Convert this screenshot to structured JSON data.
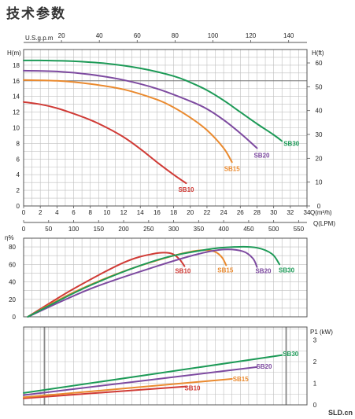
{
  "title": "技术参数",
  "watermark": "SLD.cn",
  "colors": {
    "SB10": "#d03b36",
    "SB15": "#ea8a2f",
    "SB20": "#7d4aa0",
    "SB30": "#1d9a57"
  },
  "chart_data": [
    {
      "type": "line",
      "name": "head",
      "x_units": [
        "Q(m³/h)",
        "Q(LPM)",
        "U.S.g.p.m"
      ],
      "y_units_left": "H(m)",
      "y_units_right": "H(ft)",
      "xlim": [
        0,
        34
      ],
      "ylim": [
        0,
        20
      ],
      "x_ticks": [
        0,
        2,
        4,
        6,
        8,
        10,
        12,
        14,
        16,
        18,
        20,
        22,
        24,
        26,
        28,
        30,
        32,
        34
      ],
      "y_ticks": [
        0,
        2,
        4,
        6,
        8,
        10,
        12,
        14,
        16,
        18
      ],
      "lpm_ticks": [
        0,
        50,
        100,
        150,
        200,
        250,
        300,
        350,
        400,
        450,
        500,
        550
      ],
      "gpm_ticks": [
        20,
        40,
        60,
        80,
        100,
        120,
        140
      ],
      "ft_ticks": [
        0,
        10,
        20,
        30,
        40,
        50,
        60
      ],
      "grid": true,
      "series": [
        {
          "name": "SB10",
          "x": [
            0,
            2,
            4,
            6,
            8,
            10,
            12,
            14,
            16,
            18,
            19.5
          ],
          "y": [
            13.3,
            13.0,
            12.5,
            11.8,
            11.0,
            10.0,
            8.8,
            7.3,
            5.6,
            4.0,
            2.9
          ]
        },
        {
          "name": "SB15",
          "x": [
            0,
            4,
            8,
            12,
            16,
            18,
            20,
            22,
            24,
            25
          ],
          "y": [
            16.1,
            16.0,
            15.6,
            14.9,
            13.6,
            12.6,
            11.3,
            9.7,
            7.4,
            5.6
          ]
        },
        {
          "name": "SB20",
          "x": [
            0,
            4,
            8,
            12,
            16,
            20,
            22,
            24,
            26,
            28
          ],
          "y": [
            17.3,
            17.2,
            16.8,
            16.1,
            15.0,
            13.4,
            12.4,
            11.0,
            9.3,
            7.4
          ]
        },
        {
          "name": "SB30",
          "x": [
            0,
            2,
            6,
            10,
            14,
            18,
            20,
            22,
            24,
            26,
            28,
            30,
            31
          ],
          "y": [
            18.6,
            18.6,
            18.5,
            18.2,
            17.6,
            16.6,
            15.8,
            14.8,
            13.5,
            12.0,
            10.5,
            9.1,
            8.3
          ]
        }
      ]
    },
    {
      "type": "line",
      "name": "efficiency",
      "y_units": "η%",
      "xlim": [
        0,
        34
      ],
      "ylim": [
        0,
        90
      ],
      "y_ticks": [
        0,
        20,
        40,
        60,
        80
      ],
      "grid": true,
      "series": [
        {
          "name": "SB10",
          "x": [
            0.5,
            6,
            12,
            15.5,
            17.5,
            18.6,
            19.3
          ],
          "y": [
            0,
            32,
            62,
            72,
            73,
            67,
            58
          ]
        },
        {
          "name": "SB15",
          "x": [
            0.5,
            6,
            12,
            18,
            21,
            22.8,
            23.8,
            24.3
          ],
          "y": [
            0,
            28,
            52,
            70,
            76,
            75,
            68,
            59
          ]
        },
        {
          "name": "SB20",
          "x": [
            0.5,
            8,
            16,
            21,
            24,
            26.3,
            27.5,
            28
          ],
          "y": [
            0,
            32,
            58,
            72,
            77,
            75,
            67,
            57
          ]
        },
        {
          "name": "SB30",
          "x": [
            0.5,
            8,
            16,
            22,
            25.5,
            28,
            29.8,
            30.7
          ],
          "y": [
            0,
            36,
            65,
            77,
            80,
            79,
            72,
            60
          ]
        }
      ]
    },
    {
      "type": "line",
      "name": "power",
      "y_units": "P1 (kW)",
      "xlim": [
        0,
        34
      ],
      "ylim": [
        0,
        3.6
      ],
      "y_ticks": [
        0,
        1,
        2,
        3
      ],
      "grid": true,
      "series": [
        {
          "name": "SB10",
          "x": [
            0,
            19.5
          ],
          "y": [
            0.3,
            0.85
          ]
        },
        {
          "name": "SB15",
          "x": [
            0,
            25
          ],
          "y": [
            0.35,
            1.2
          ]
        },
        {
          "name": "SB20",
          "x": [
            0,
            28
          ],
          "y": [
            0.45,
            1.75
          ]
        },
        {
          "name": "SB30",
          "x": [
            0,
            31
          ],
          "y": [
            0.55,
            2.3
          ]
        }
      ]
    }
  ]
}
